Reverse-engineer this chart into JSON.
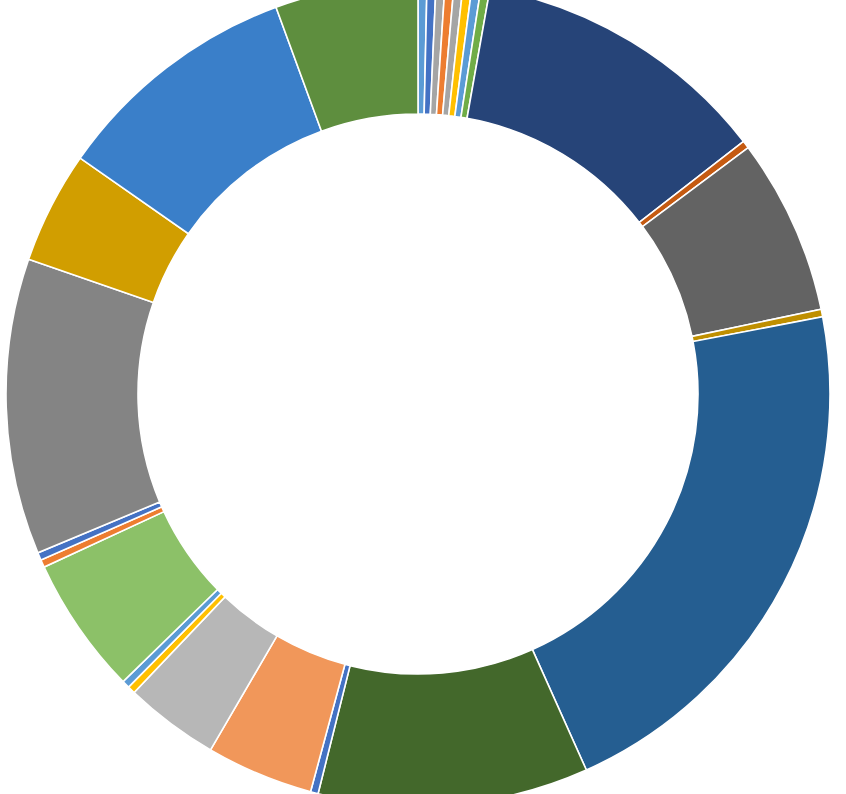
{
  "chart_data": {
    "type": "donut",
    "categories": [
      null,
      null,
      null,
      null,
      null,
      null,
      null,
      null,
      null,
      null,
      null,
      null,
      null,
      null,
      null,
      null,
      null,
      null,
      null,
      null,
      null,
      null,
      null,
      null,
      null,
      null
    ],
    "values": [
      0.35,
      0.35,
      0.35,
      0.35,
      0.35,
      0.35,
      0.35,
      0.35,
      11.7,
      0.3,
      6.9,
      0.3,
      21.3,
      10.6,
      0.3,
      4.2,
      3.7,
      0.3,
      0.3,
      5.4,
      0.3,
      0.3,
      11.6,
      4.4,
      9.7,
      5.6
    ],
    "colors": [
      "#5b9bd5",
      "#4472c4",
      "#a5a5a5",
      "#ed7d31",
      "#a5a5a5",
      "#ffc000",
      "#5b9bd5",
      "#70ad47",
      "#264478",
      "#c55a11",
      "#636363",
      "#bf8f00",
      "#255e91",
      "#43682b",
      "#4472c4",
      "#f1975a",
      "#b7b7b7",
      "#ffc000",
      "#5b9bd5",
      "#8cc168",
      "#ed7d31",
      "#4472c4",
      "#848484",
      "#d19e00",
      "#3a7fc9",
      "#5e8e3e"
    ]
  }
}
